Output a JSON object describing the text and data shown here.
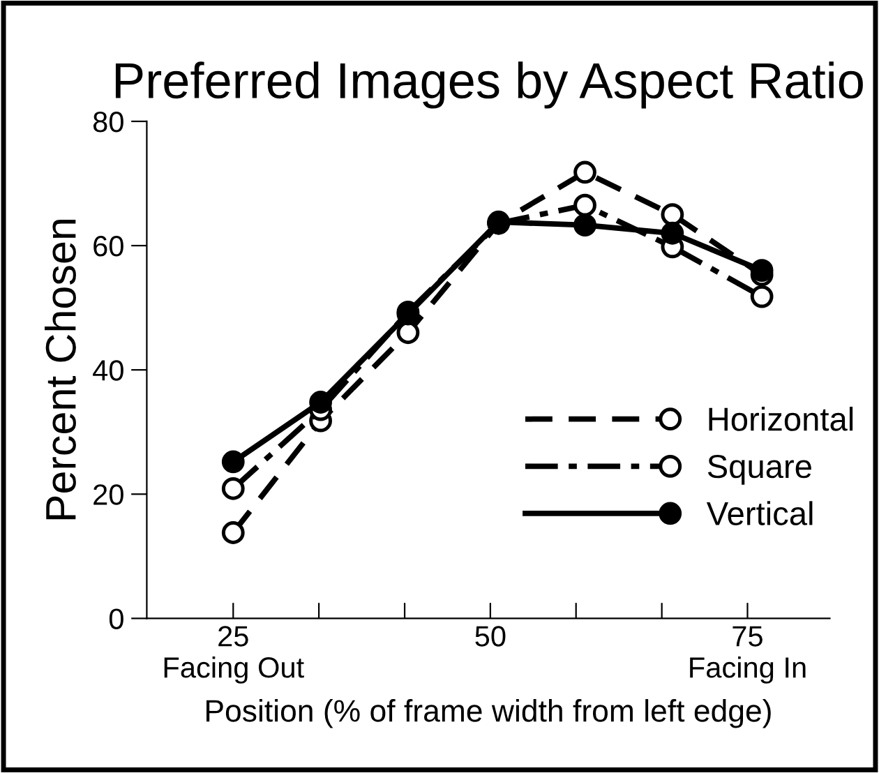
{
  "chart_data": {
    "type": "line",
    "title": "Preferred Images by Aspect Ratio",
    "xlabel": "Position (% of frame width from left edge)",
    "ylabel": "Percent Chosen",
    "x": [
      25,
      33.5,
      42,
      50.8,
      59.2,
      67.7,
      76.4
    ],
    "series": [
      {
        "name": "Horizontal",
        "color": "#000000",
        "line_style": "dashed",
        "values": [
          13.8,
          31.8,
          46,
          63.6,
          71.8,
          65,
          55.3
        ]
      },
      {
        "name": "Square",
        "color": "#000000",
        "line_style": "dashdot",
        "values": [
          20.9,
          33.6,
          49.3,
          63.6,
          66.5,
          59.8,
          51.8
        ]
      },
      {
        "name": "Vertical",
        "color": "#000000",
        "line_style": "solid",
        "values": [
          25.2,
          34.8,
          49,
          63.8,
          63.3,
          62,
          56
        ]
      }
    ],
    "marker": "circle",
    "xlim": [
      16.6,
      83
    ],
    "ylim": [
      0,
      80
    ],
    "xticks": [
      {
        "value": 25,
        "label": "25\nFacing Out"
      },
      {
        "value": 33.33,
        "label": null
      },
      {
        "value": 41.67,
        "label": null
      },
      {
        "value": 50,
        "label": "50"
      },
      {
        "value": 58.33,
        "label": null
      },
      {
        "value": 66.67,
        "label": null
      },
      {
        "value": 75,
        "label": "75\nFacing In"
      }
    ],
    "yticks": [
      0,
      20,
      40,
      60,
      80
    ],
    "grid": false,
    "legend": "right"
  }
}
